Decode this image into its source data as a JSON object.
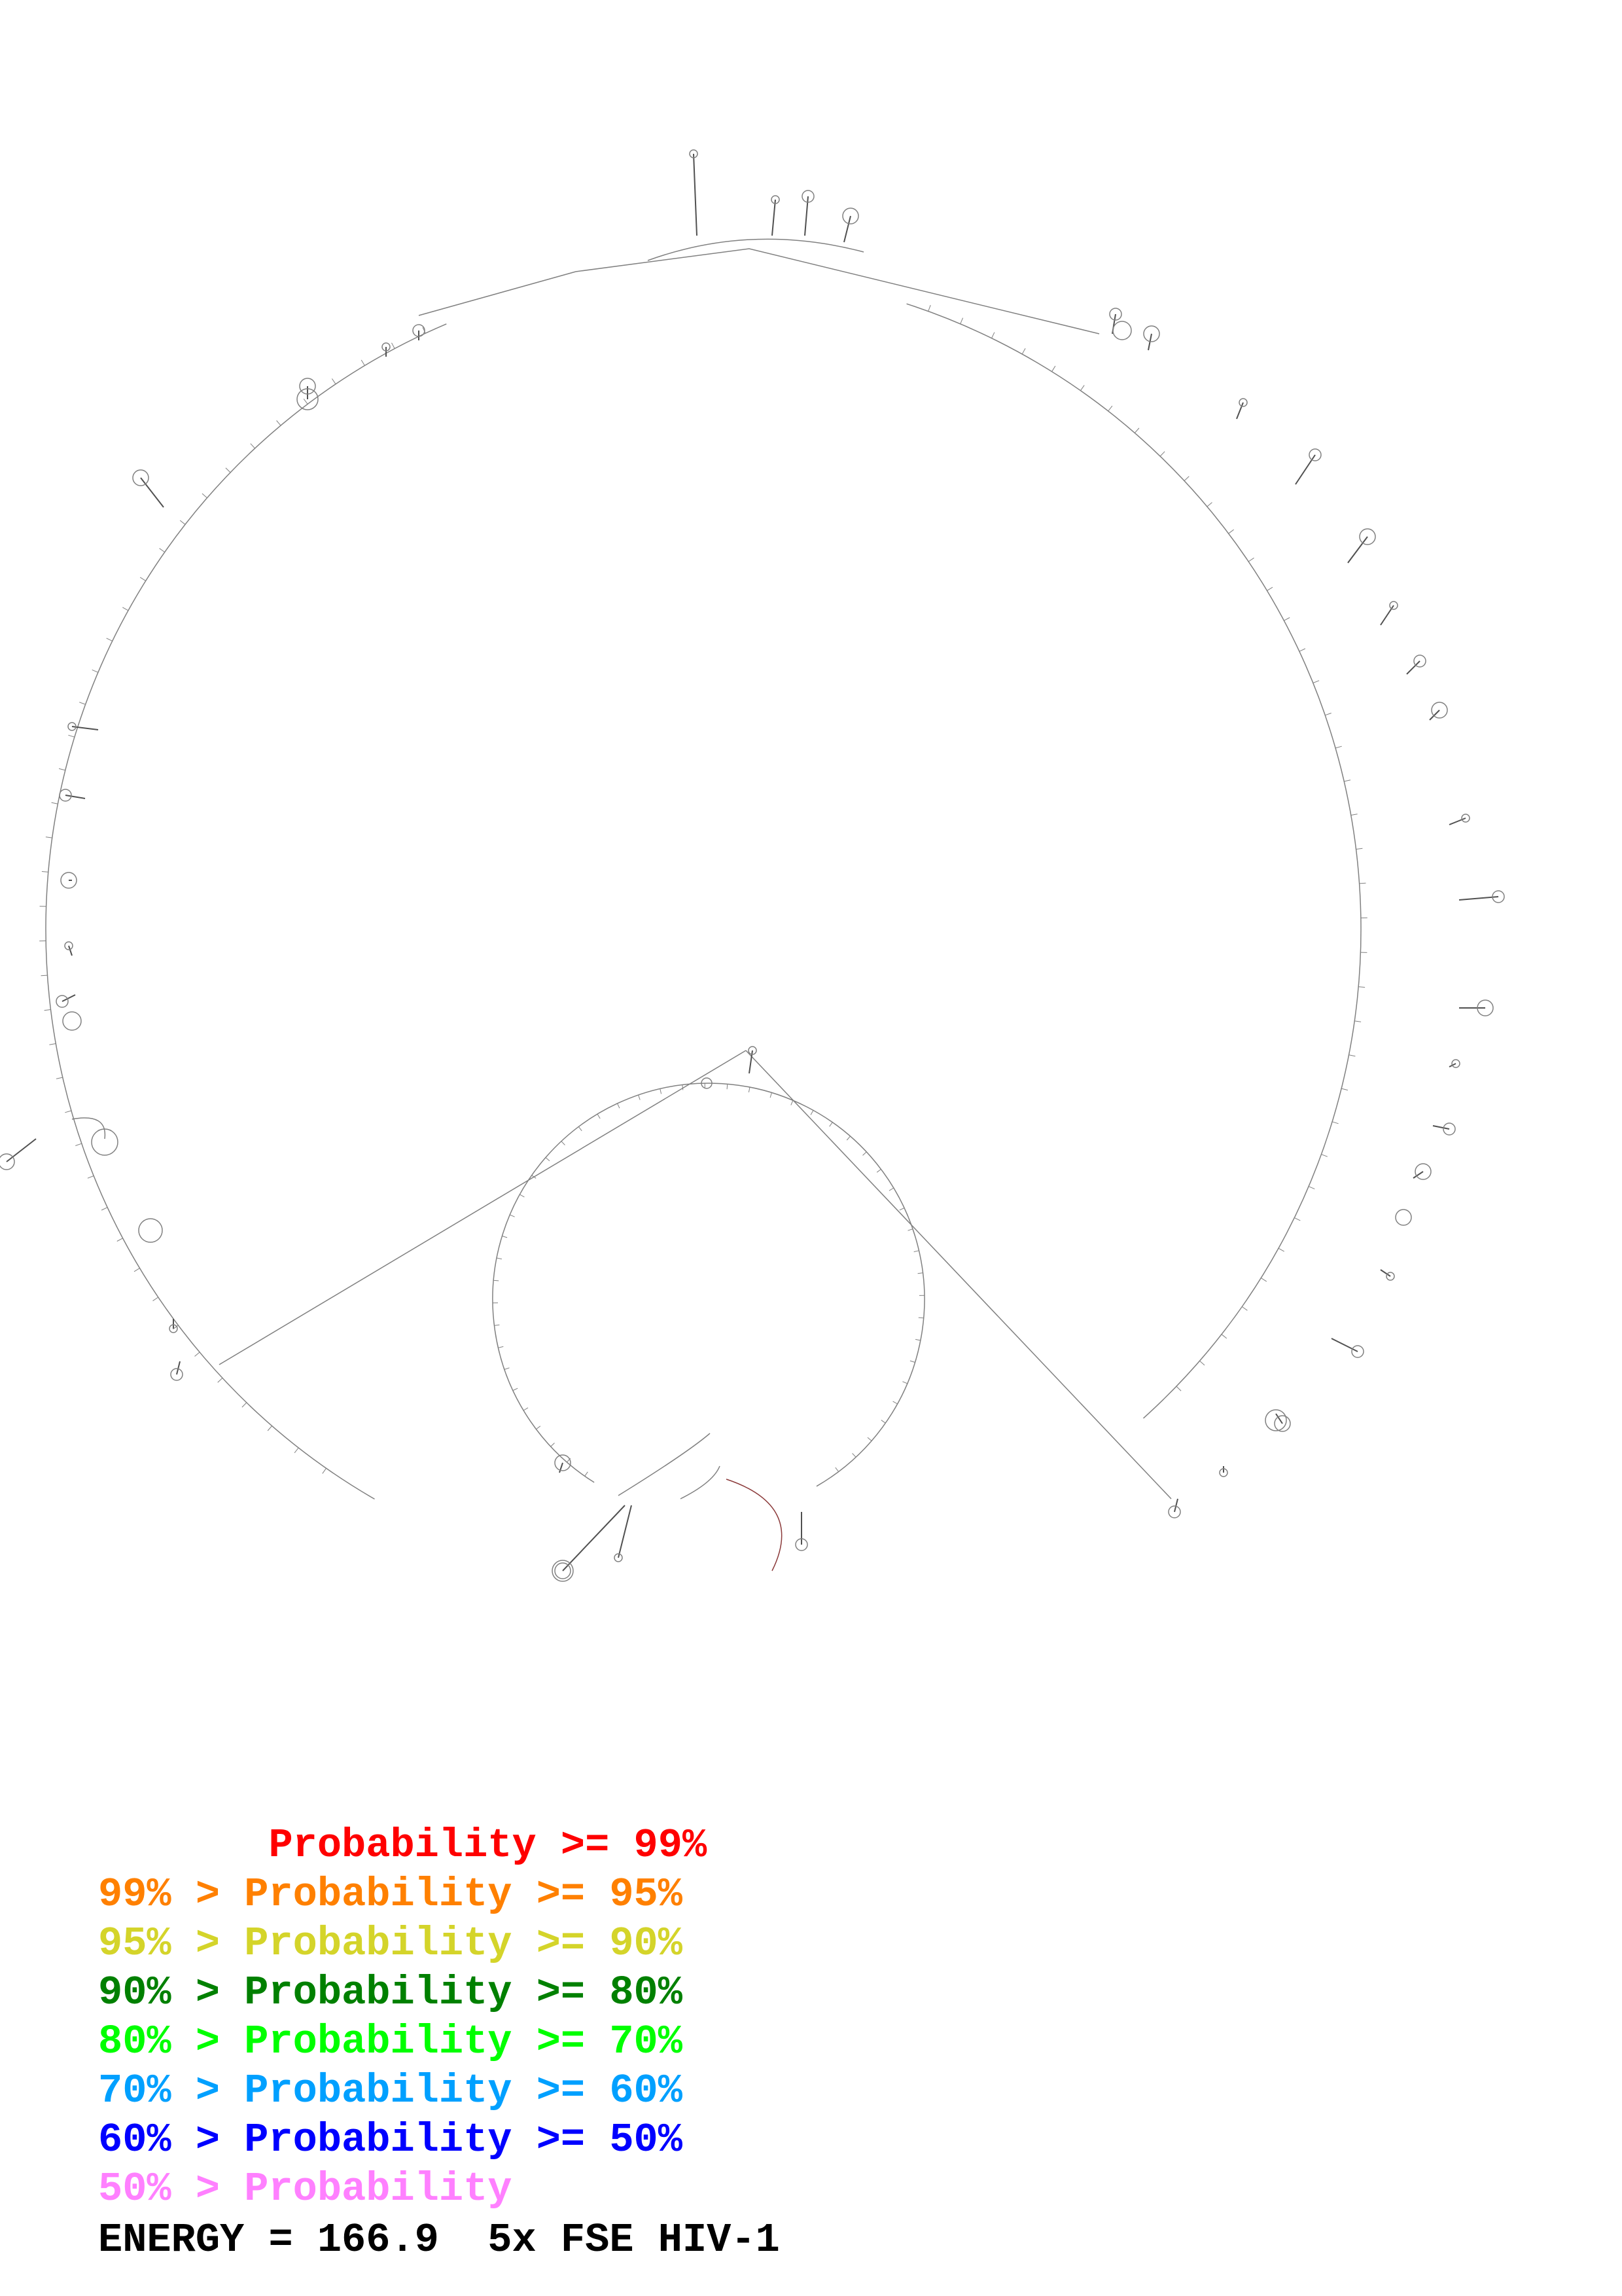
{
  "legend": {
    "rows": [
      {
        "text": "       Probability >= 99%",
        "color": "#ff0000"
      },
      {
        "text": "99% > Probability >= 95%",
        "color": "#ff8000"
      },
      {
        "text": "95% > Probability >= 90%",
        "color": "#d4d42a"
      },
      {
        "text": "90% > Probability >= 80%",
        "color": "#008000"
      },
      {
        "text": "80% > Probability >= 70%",
        "color": "#00ff00"
      },
      {
        "text": "70% > Probability >= 60%",
        "color": "#00a0ff"
      },
      {
        "text": "60% > Probability >= 50%",
        "color": "#0000ff"
      },
      {
        "text": "50% > Probability",
        "color": "#ff80ff"
      }
    ]
  },
  "footer": {
    "energy_text": "ENERGY = 166.9  5x FSE HIV-1"
  },
  "structure": {
    "line_color": "#808080",
    "stem_color": "#505050"
  }
}
